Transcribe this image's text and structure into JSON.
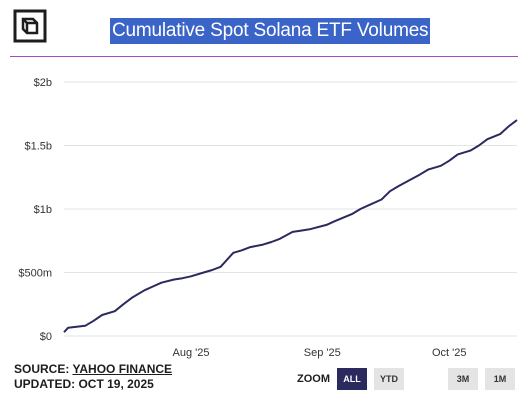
{
  "header": {
    "title": "Cumulative Spot Solana ETF Volumes",
    "logo_icon": "cube-icon"
  },
  "chart_data": {
    "type": "line",
    "title": "Cumulative Spot Solana ETF Volumes",
    "xlabel": "",
    "ylabel": "",
    "color": "#2b2a5e",
    "grid": true,
    "x_range": [
      "2025-07-02",
      "2025-10-17"
    ],
    "ylim": [
      0,
      2000000000
    ],
    "y_ticks": [
      "$0",
      "$500m",
      "$1b",
      "$1.5b",
      "$2b"
    ],
    "y_tick_values": [
      0,
      500000000,
      1000000000,
      1500000000,
      2000000000
    ],
    "x_ticks": [
      "Aug '25",
      "Sep '25",
      "Oct '25"
    ],
    "x_tick_dates": [
      "2025-08-01",
      "2025-09-01",
      "2025-10-01"
    ],
    "series": [
      {
        "x": [
          "2025-07-02",
          "2025-07-03",
          "2025-07-07",
          "2025-07-09",
          "2025-07-11",
          "2025-07-14",
          "2025-07-16",
          "2025-07-18",
          "2025-07-21",
          "2025-07-23",
          "2025-07-25",
          "2025-07-28",
          "2025-07-30",
          "2025-08-01",
          "2025-08-04",
          "2025-08-06",
          "2025-08-08",
          "2025-08-11",
          "2025-08-13",
          "2025-08-15",
          "2025-08-18",
          "2025-08-20",
          "2025-08-22",
          "2025-08-25",
          "2025-08-27",
          "2025-08-29",
          "2025-09-02",
          "2025-09-04",
          "2025-09-08",
          "2025-09-10",
          "2025-09-12",
          "2025-09-15",
          "2025-09-17",
          "2025-09-19",
          "2025-09-22",
          "2025-09-24",
          "2025-09-26",
          "2025-09-29",
          "2025-10-01",
          "2025-10-03",
          "2025-10-06",
          "2025-10-08",
          "2025-10-10",
          "2025-10-13",
          "2025-10-15",
          "2025-10-17"
        ],
        "y": [
          30000000,
          65000000,
          80000000,
          120000000,
          165000000,
          195000000,
          250000000,
          300000000,
          360000000,
          390000000,
          420000000,
          445000000,
          455000000,
          470000000,
          500000000,
          520000000,
          545000000,
          655000000,
          675000000,
          700000000,
          720000000,
          740000000,
          765000000,
          820000000,
          830000000,
          840000000,
          875000000,
          905000000,
          960000000,
          1000000000,
          1030000000,
          1075000000,
          1140000000,
          1180000000,
          1235000000,
          1270000000,
          1310000000,
          1340000000,
          1380000000,
          1430000000,
          1460000000,
          1500000000,
          1550000000,
          1590000000,
          1650000000,
          1700000000
        ]
      }
    ]
  },
  "footer": {
    "source_label": "SOURCE:",
    "source_name": "YAHOO FINANCE",
    "updated_label": "UPDATED:",
    "updated_date": "OCT 19, 2025"
  },
  "zoom": {
    "label": "ZOOM",
    "options": [
      "ALL",
      "YTD",
      "3M",
      "1M"
    ],
    "selected": "ALL"
  }
}
